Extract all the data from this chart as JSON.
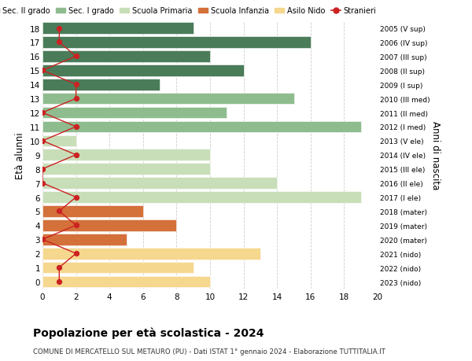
{
  "ages": [
    18,
    17,
    16,
    15,
    14,
    13,
    12,
    11,
    10,
    9,
    8,
    7,
    6,
    5,
    4,
    3,
    2,
    1,
    0
  ],
  "anni_nascita": [
    "2005 (V sup)",
    "2006 (IV sup)",
    "2007 (III sup)",
    "2008 (II sup)",
    "2009 (I sup)",
    "2010 (III med)",
    "2011 (II med)",
    "2012 (I med)",
    "2013 (V ele)",
    "2014 (IV ele)",
    "2015 (III ele)",
    "2016 (II ele)",
    "2017 (I ele)",
    "2018 (mater)",
    "2019 (mater)",
    "2020 (mater)",
    "2021 (nido)",
    "2022 (nido)",
    "2023 (nido)"
  ],
  "bar_values": [
    9,
    16,
    10,
    12,
    7,
    15,
    11,
    19,
    2,
    10,
    10,
    14,
    19,
    6,
    8,
    5,
    13,
    9,
    10
  ],
  "bar_colors": [
    "#4a7c59",
    "#4a7c59",
    "#4a7c59",
    "#4a7c59",
    "#4a7c59",
    "#8fbc8f",
    "#8fbc8f",
    "#8fbc8f",
    "#c8deb8",
    "#c8deb8",
    "#c8deb8",
    "#c8deb8",
    "#c8deb8",
    "#d4703a",
    "#d4703a",
    "#d4703a",
    "#f5d78e",
    "#f5d78e",
    "#f5d78e"
  ],
  "stranieri": [
    1,
    1,
    2,
    0,
    2,
    2,
    0,
    2,
    0,
    2,
    0,
    0,
    2,
    1,
    2,
    0,
    2,
    1,
    1
  ],
  "title": "Popolazione per età scolastica - 2024",
  "subtitle": "COMUNE DI MERCATELLO SUL METAURO (PU) - Dati ISTAT 1° gennaio 2024 - Elaborazione TUTTITALIA.IT",
  "ylabel_left": "Età alunni",
  "ylabel_right": "Anni di nascita",
  "xlim": [
    0,
    20
  ],
  "xticks": [
    0,
    2,
    4,
    6,
    8,
    10,
    12,
    14,
    16,
    18,
    20
  ],
  "legend_labels": [
    "Sec. II grado",
    "Sec. I grado",
    "Scuola Primaria",
    "Scuola Infanzia",
    "Asilo Nido",
    "Stranieri"
  ],
  "legend_colors": [
    "#4a7c59",
    "#8fbc8f",
    "#c8deb8",
    "#d4703a",
    "#f5d78e",
    "#cc2222"
  ],
  "stranieri_color": "#cc2222",
  "background_color": "#ffffff",
  "grid_color": "#cccccc"
}
